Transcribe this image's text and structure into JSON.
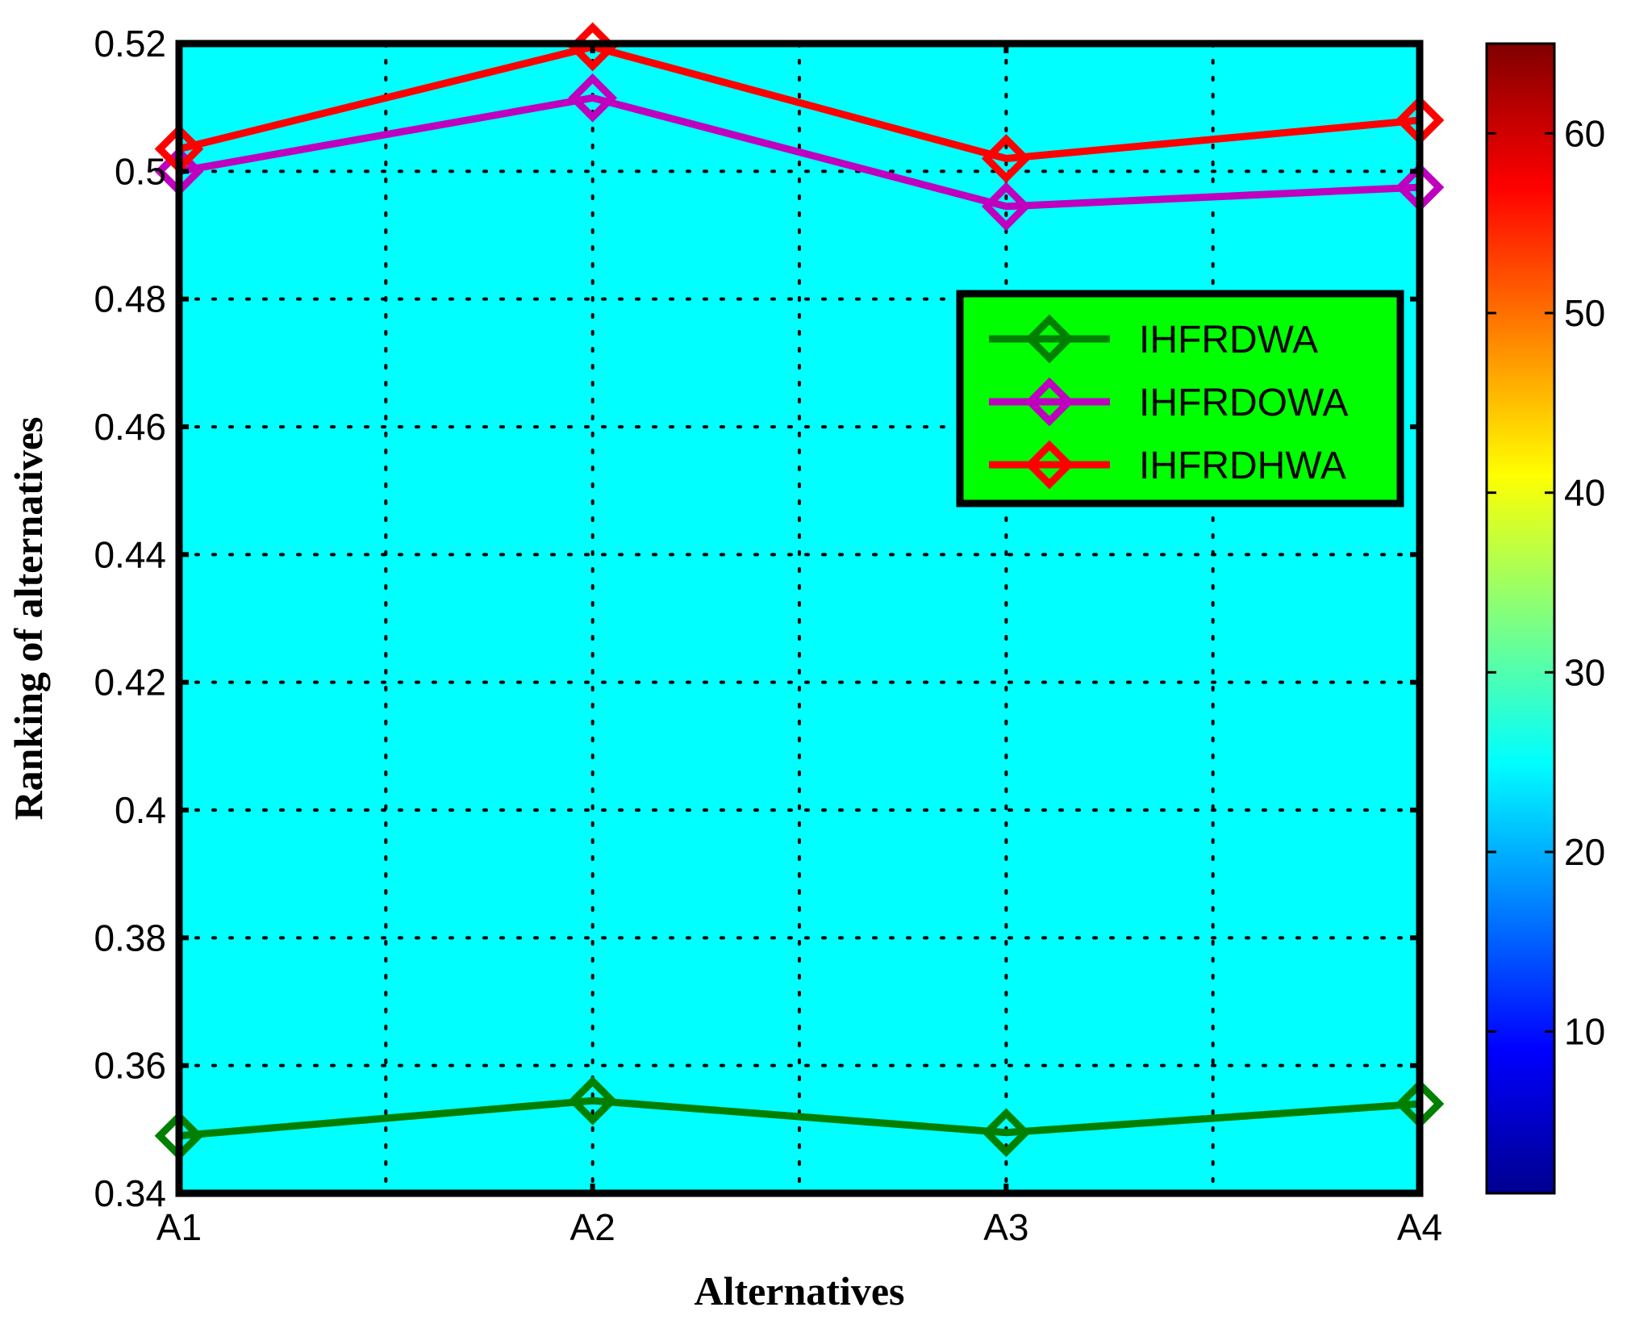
{
  "chart_data": {
    "type": "line",
    "title": "",
    "xlabel": "Alternatives",
    "ylabel": "Ranking of alternatives",
    "categories": [
      "A1",
      "A2",
      "A3",
      "A4"
    ],
    "ylim": [
      0.34,
      0.52
    ],
    "yticks": [
      "0.34",
      "0.36",
      "0.38",
      "0.4",
      "0.42",
      "0.44",
      "0.46",
      "0.48",
      "0.5",
      "0.52"
    ],
    "grid": true,
    "grid_style": "dotted",
    "background_color": "#00FFFF",
    "legend": {
      "placement": "upper-right",
      "background_color": "#00FF00"
    },
    "marker": "diamond",
    "series": [
      {
        "name": "IHFRDWA",
        "color": "#007F00",
        "values": [
          0.349,
          0.3545,
          0.3495,
          0.354
        ]
      },
      {
        "name": "IHFRDOWA",
        "color": "#BF00BF",
        "values": [
          0.5,
          0.5115,
          0.4945,
          0.4975
        ]
      },
      {
        "name": "IHFRDHWA",
        "color": "#FF0000",
        "values": [
          0.5035,
          0.5195,
          0.502,
          0.508
        ]
      }
    ],
    "colorbar": {
      "colormap": "jet",
      "range": [
        1,
        65
      ],
      "ticks": [
        "10",
        "20",
        "30",
        "40",
        "50",
        "60"
      ]
    }
  }
}
